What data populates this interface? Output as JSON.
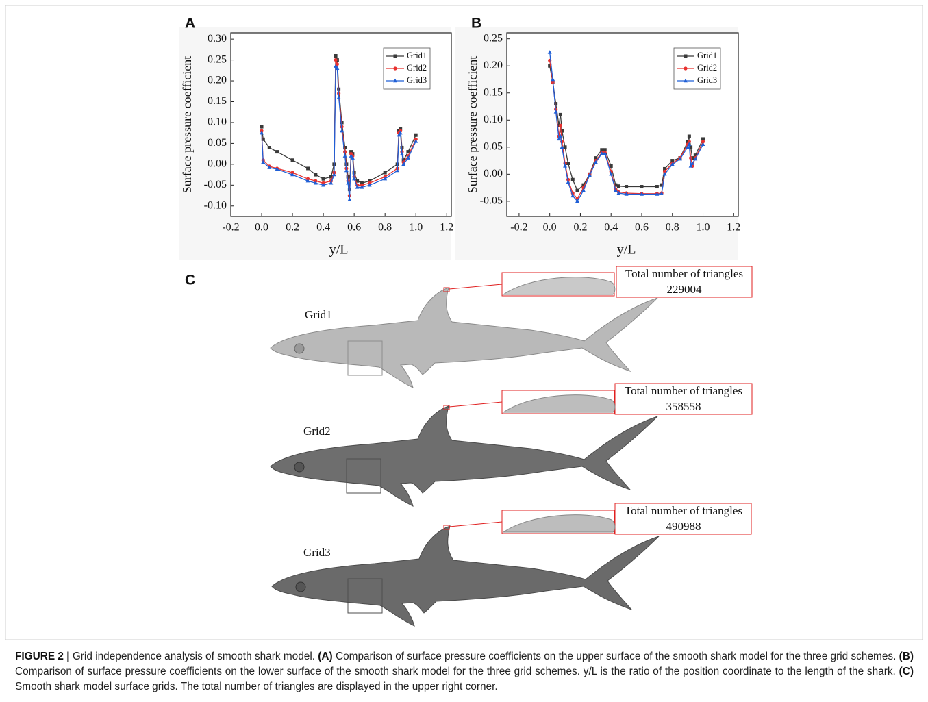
{
  "chart_data": [
    {
      "type": "line",
      "panel": "A",
      "xlabel": "y/L",
      "ylabel": "Surface pressure coefficient",
      "xlim": [
        -0.2,
        1.23
      ],
      "ylim": [
        -0.125,
        0.315
      ],
      "xticks": [
        -0.2,
        {
          "value": 0,
          "label": "0.0"
        },
        0.2,
        0.4,
        0.6,
        0.8,
        {
          "value": 1,
          "label": "1.0"
        },
        1.2
      ],
      "yticks": [
        {
          "value": 0.3,
          "label": "0.30"
        },
        0.25,
        {
          "value": 0.2,
          "label": "0.20"
        },
        0.15,
        {
          "value": 0.1,
          "label": "0.10"
        },
        0.05,
        {
          "value": 0,
          "label": "0.00"
        },
        -0.05,
        {
          "value": -0.1,
          "label": "-0.10"
        }
      ],
      "legend": "upper right",
      "x": [
        0,
        0.01,
        0.05,
        0.1,
        0.2,
        0.3,
        0.35,
        0.4,
        0.45,
        0.47,
        0.48,
        0.49,
        0.5,
        0.52,
        0.54,
        0.55,
        0.56,
        0.57,
        0.58,
        0.59,
        0.6,
        0.62,
        0.65,
        0.7,
        0.8,
        0.88,
        0.89,
        0.9,
        0.91,
        0.92,
        0.95,
        1.0
      ],
      "series": [
        {
          "name": "Grid1",
          "color": "#3a3a3a",
          "marker": "square",
          "values": [
            0.09,
            0.06,
            0.04,
            0.03,
            0.01,
            -0.01,
            -0.025,
            -0.035,
            -0.03,
            0.0,
            0.26,
            0.25,
            0.18,
            0.1,
            0.04,
            0.0,
            -0.03,
            -0.06,
            0.03,
            0.025,
            -0.02,
            -0.04,
            -0.045,
            -0.04,
            -0.02,
            0.0,
            0.08,
            0.085,
            0.04,
            0.01,
            0.03,
            0.07
          ]
        },
        {
          "name": "Grid2",
          "color": "#e8312f",
          "marker": "circle",
          "values": [
            0.08,
            0.01,
            -0.005,
            -0.01,
            -0.02,
            -0.035,
            -0.04,
            -0.045,
            -0.04,
            -0.02,
            0.25,
            0.24,
            0.17,
            0.09,
            0.03,
            -0.01,
            -0.04,
            -0.075,
            0.025,
            0.02,
            -0.03,
            -0.05,
            -0.05,
            -0.045,
            -0.03,
            -0.01,
            0.075,
            0.08,
            0.03,
            0.005,
            0.02,
            0.06
          ]
        },
        {
          "name": "Grid3",
          "color": "#1f5fd6",
          "marker": "triangle",
          "values": [
            0.075,
            0.005,
            -0.008,
            -0.012,
            -0.025,
            -0.04,
            -0.045,
            -0.05,
            -0.045,
            -0.025,
            0.235,
            0.23,
            0.16,
            0.08,
            0.02,
            -0.015,
            -0.045,
            -0.085,
            0.02,
            0.015,
            -0.035,
            -0.055,
            -0.055,
            -0.05,
            -0.035,
            -0.015,
            0.07,
            0.075,
            0.025,
            0.0,
            0.015,
            0.055
          ]
        }
      ]
    },
    {
      "type": "line",
      "panel": "B",
      "xlabel": "y/L",
      "ylabel": "Surface pressure coefficient",
      "xlim": [
        -0.28,
        1.23
      ],
      "ylim": [
        -0.078,
        0.261
      ],
      "xticks": [
        -0.2,
        {
          "value": 0,
          "label": "0.0"
        },
        0.2,
        0.4,
        0.6,
        0.8,
        {
          "value": 1,
          "label": "1.0"
        },
        1.2
      ],
      "yticks": [
        0.25,
        {
          "value": 0.2,
          "label": "0.20"
        },
        0.15,
        {
          "value": 0.1,
          "label": "0.10"
        },
        0.05,
        {
          "value": 0,
          "label": "0.00"
        },
        -0.05
      ],
      "legend": "upper right",
      "x": [
        0,
        0.02,
        0.04,
        0.06,
        0.07,
        0.08,
        0.1,
        0.12,
        0.15,
        0.18,
        0.22,
        0.26,
        0.3,
        0.34,
        0.36,
        0.4,
        0.43,
        0.45,
        0.5,
        0.6,
        0.7,
        0.73,
        0.75,
        0.8,
        0.85,
        0.9,
        0.91,
        0.92,
        0.93,
        0.95,
        1.0
      ],
      "series": [
        {
          "name": "Grid1",
          "color": "#3a3a3a",
          "marker": "square",
          "values": [
            0.2,
            0.17,
            0.13,
            0.09,
            0.11,
            0.08,
            0.05,
            0.02,
            -0.01,
            -0.03,
            -0.02,
            0.0,
            0.03,
            0.045,
            0.045,
            0.015,
            -0.02,
            -0.022,
            -0.023,
            -0.023,
            -0.023,
            -0.02,
            0.01,
            0.025,
            0.03,
            0.06,
            0.07,
            0.05,
            0.03,
            0.035,
            0.065
          ]
        },
        {
          "name": "Grid2",
          "color": "#e8312f",
          "marker": "circle",
          "values": [
            0.21,
            0.17,
            0.12,
            0.07,
            0.09,
            0.06,
            0.02,
            -0.01,
            -0.035,
            -0.045,
            -0.025,
            0.0,
            0.025,
            0.04,
            0.04,
            0.005,
            -0.028,
            -0.033,
            -0.035,
            -0.036,
            -0.036,
            -0.035,
            0.005,
            0.02,
            0.03,
            0.055,
            0.06,
            0.03,
            0.015,
            0.03,
            0.06
          ]
        },
        {
          "name": "Grid3",
          "color": "#1f5fd6",
          "marker": "triangle",
          "values": [
            0.225,
            0.175,
            0.115,
            0.065,
            0.07,
            0.05,
            0.015,
            -0.015,
            -0.04,
            -0.05,
            -0.03,
            -0.002,
            0.022,
            0.038,
            0.038,
            0.0,
            -0.03,
            -0.035,
            -0.037,
            -0.037,
            -0.037,
            -0.036,
            0.0,
            0.018,
            0.028,
            0.05,
            0.055,
            0.015,
            0.02,
            0.028,
            0.055
          ]
        }
      ]
    }
  ],
  "panel_c": {
    "panel": "C",
    "grids": [
      {
        "name": "Grid1",
        "box_title": "Total number of triangles",
        "triangles": 229004
      },
      {
        "name": "Grid2",
        "box_title": "Total number of triangles",
        "triangles": 358558
      },
      {
        "name": "Grid3",
        "box_title": "Total number of triangles",
        "triangles": 490988
      }
    ]
  },
  "caption": {
    "label": "FIGURE 2 |",
    "intro": " Grid independence analysis of smooth shark model. ",
    "a_label": "(A)",
    "a_text": " Comparison of surface pressure coefficients on the upper surface of the smooth shark model for the three grid schemes. ",
    "b_label": "(B)",
    "b_text": " Comparison of surface pressure coefficients on the lower surface of the smooth shark model for the three grid schemes. y/L is the ratio of the position coordinate to the length of the shark. ",
    "c_label": "(C)",
    "c_text": " Smooth shark model surface grids. The total number of triangles are displayed in the upper right corner."
  }
}
